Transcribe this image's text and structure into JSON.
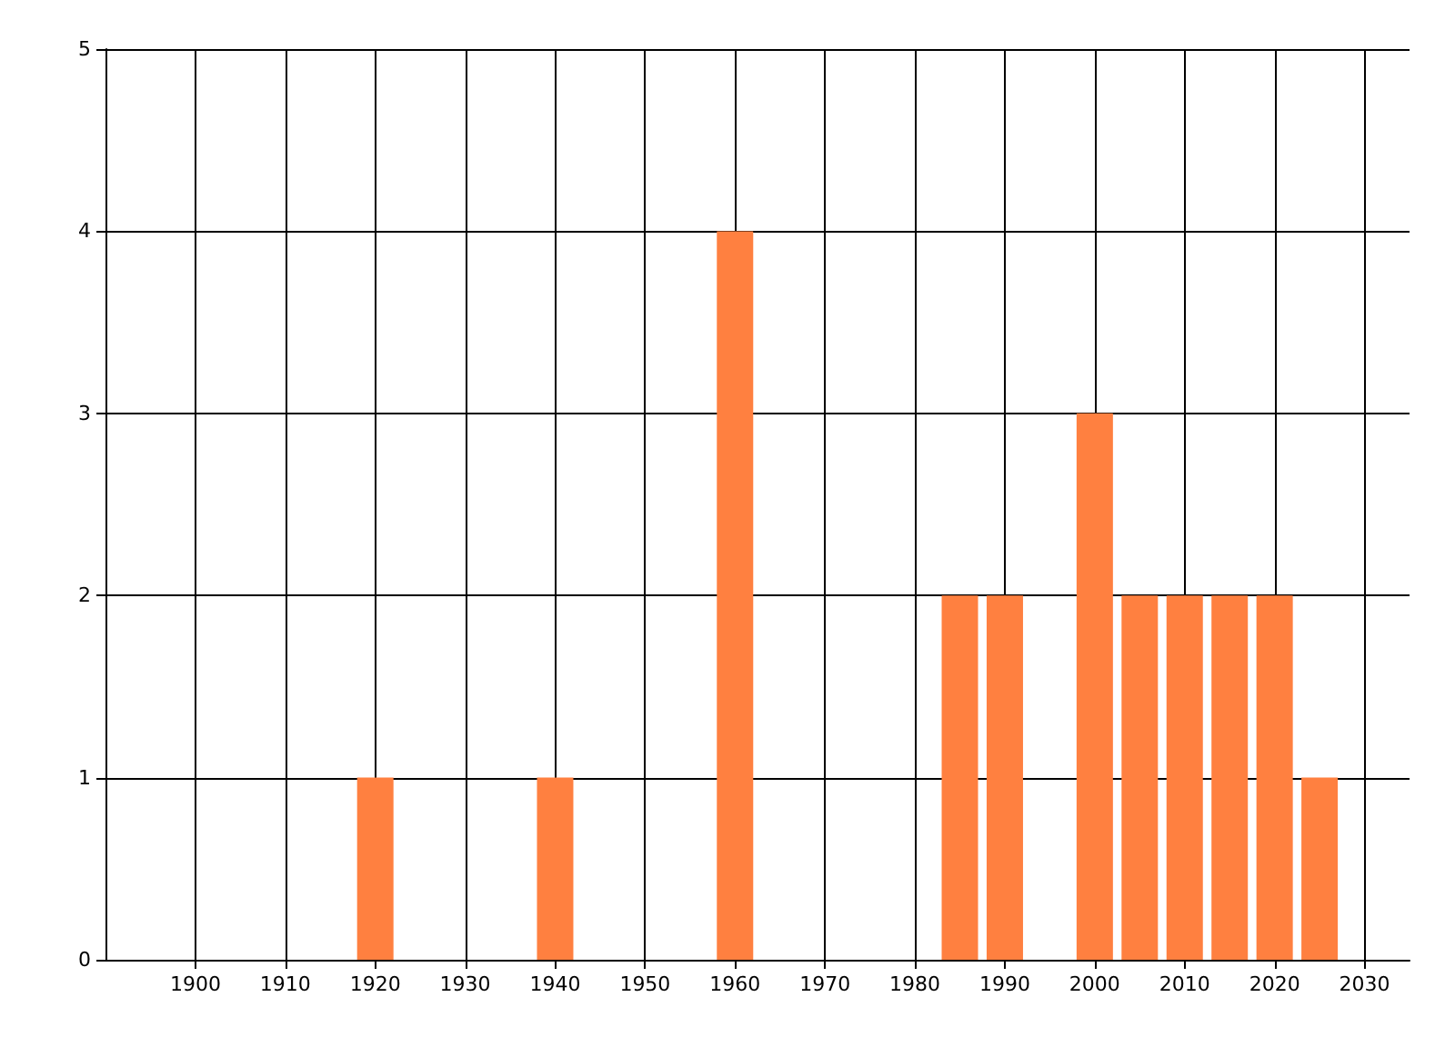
{
  "chart_data": {
    "type": "bar",
    "x": [
      1920,
      1940,
      1960,
      1985,
      1990,
      2000,
      2005,
      2010,
      2015,
      2020,
      2025
    ],
    "values": [
      1,
      1,
      4,
      2,
      2,
      3,
      2,
      2,
      2,
      2,
      1
    ],
    "color": "#ff8040",
    "xlim": [
      1890,
      2035
    ],
    "xticks": [
      1900,
      1910,
      1920,
      1930,
      1940,
      1950,
      1960,
      1970,
      1980,
      1990,
      2000,
      2010,
      2020,
      2030
    ],
    "ylim": [
      0,
      5
    ],
    "yticks": [
      0,
      1,
      2,
      3,
      4,
      5
    ],
    "grid": true
  }
}
